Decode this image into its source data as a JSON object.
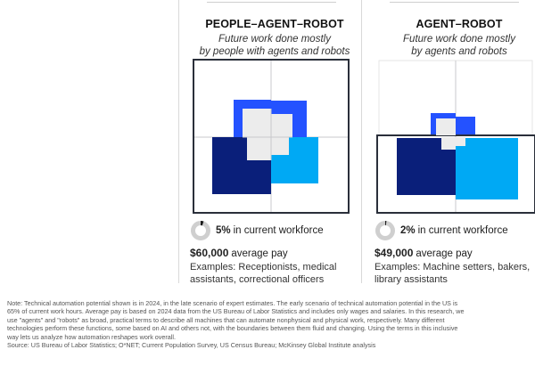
{
  "colors": {
    "navy": "#0a1f7a",
    "blue": "#2452ff",
    "cyan": "#00a9f4",
    "light_gray": "#ececec",
    "frame": "#2a2f3a",
    "grid": "#c8c8cc",
    "ring": "#cfcfcf"
  },
  "cards": [
    {
      "title": "PEOPLE–AGENT–ROBOT",
      "subtitle_line1": "Future work done mostly",
      "subtitle_line2": "by people with agents and robots",
      "workforce_pct_label": "5%",
      "workforce_pct": 5,
      "workforce_text": "in current workforce",
      "pay_value": "$60,000",
      "pay_text": "average pay",
      "examples_line1": "Examples: Receptionists, medical",
      "examples_line2": "assistants, correctional officers"
    },
    {
      "title": "AGENT–ROBOT",
      "subtitle_line1": "Future work done mostly",
      "subtitle_line2": "by agents and robots",
      "workforce_pct_label": "2%",
      "workforce_pct": 2,
      "workforce_text": "in current workforce",
      "pay_value": "$49,000",
      "pay_text": "average pay",
      "examples_line1": "Examples: Machine setters, bakers,",
      "examples_line2": "library assistants"
    }
  ],
  "footnote": {
    "line1": "Note: Technical automation potential shown is in 2024, in the late scenario of expert estimates. The early scenario of technical automation potential in the US is",
    "line2": "65% of current work hours. Average pay is based on 2024 data from the US Bureau of Labor Statistics and includes only wages and salaries. In this research, we",
    "line3": "use \"agents\" and \"robots\" as broad, practical terms to describe all machines that can automate nonphysical and physical work, respectively. Many different",
    "line4": "technologies perform these functions, some based on AI and others not, with the boundaries between them fluid and changing. Using the terms in this inclusive",
    "line5": "way lets us analyze how automation reshapes work overall.",
    "source": "Source: US Bureau of Labor Statistics; O*NET; Current Population Survey, US Census Bureau; McKinsey Global Institute analysis"
  }
}
